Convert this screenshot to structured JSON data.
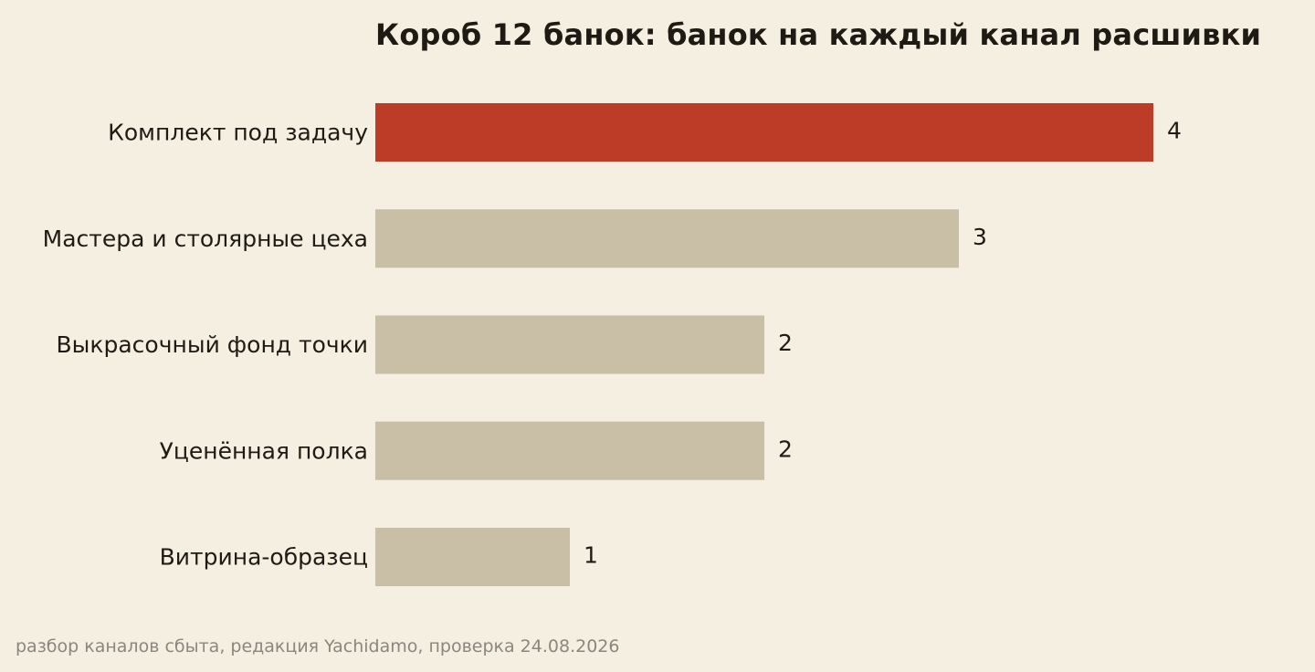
{
  "chart_data": {
    "type": "bar",
    "orientation": "horizontal",
    "title": "Короб 12 банок: банок на каждый канал расшивки",
    "categories": [
      "Комплект под задачу",
      "Мастера и столярные цеха",
      "Выкрасочный фонд точки",
      "Уценённая полка",
      "Витрина-образец"
    ],
    "values": [
      4,
      3,
      2,
      2,
      1
    ],
    "data_labels": [
      "4",
      "3",
      "2",
      "2",
      "1"
    ],
    "highlight_index": 0,
    "xlim": [
      0,
      4
    ],
    "grid": false,
    "axes_visible": false,
    "colors": {
      "highlight": "#bc3c28",
      "default": "#c9bfa6",
      "text": "#1f1b14",
      "background": "#f5efe2"
    }
  },
  "footnote": "разбор каналов сбыта, редакция Yachidamo, проверка 24.08.2026"
}
